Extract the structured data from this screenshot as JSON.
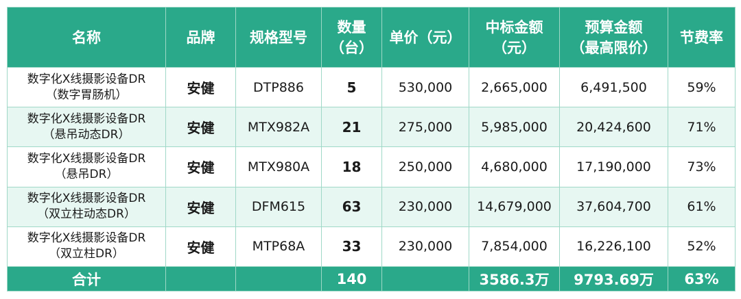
{
  "headers": {
    "name": "名称",
    "brand": "品牌",
    "model": "规格型号",
    "qty_l1": "数量",
    "qty_l2": "（台）",
    "unit_price": "单价（元）",
    "winning_l1": "中标金额",
    "winning_l2": "（元）",
    "budget_l1": "预算金额",
    "budget_l2": "（最高限价）",
    "saving": "节费率"
  },
  "rows": [
    {
      "name_l1": "数字化X线摄影设备DR",
      "name_l2": "（数字胃肠机）",
      "brand": "安健",
      "model": "DTP886",
      "qty": "5",
      "unit_price": "530,000",
      "winning": "2,665,000",
      "budget": "6,491,500",
      "saving": "59%"
    },
    {
      "name_l1": "数字化X线摄影设备DR",
      "name_l2": "（悬吊动态DR）",
      "brand": "安健",
      "model": "MTX982A",
      "qty": "21",
      "unit_price": "275,000",
      "winning": "5,985,000",
      "budget": "20,424,600",
      "saving": "71%"
    },
    {
      "name_l1": "数字化X线摄影设备DR",
      "name_l2": "（悬吊DR）",
      "brand": "安健",
      "model": "MTX980A",
      "qty": "18",
      "unit_price": "250,000",
      "winning": "4,680,000",
      "budget": "17,190,000",
      "saving": "73%"
    },
    {
      "name_l1": "数字化X线摄影设备DR",
      "name_l2": "（双立柱动态DR）",
      "brand": "安健",
      "model": "DFM615",
      "qty": "63",
      "unit_price": "230,000",
      "winning": "14,679,000",
      "budget": "37,604,700",
      "saving": "61%"
    },
    {
      "name_l1": "数字化X线摄影设备DR",
      "name_l2": "（双立柱DR）",
      "brand": "安健",
      "model": "MTP68A",
      "qty": "33",
      "unit_price": "230,000",
      "winning": "7,854,000",
      "budget": "16,226,100",
      "saving": "52%"
    }
  ],
  "total": {
    "label": "合计",
    "brand": "",
    "model": "",
    "qty": "140",
    "unit_price": "",
    "winning": "3586.3万",
    "budget": "9793.69万",
    "saving": "63%"
  },
  "colors": {
    "header_bg": "#2aa98a",
    "alt_row_bg": "#e7f7f2"
  }
}
